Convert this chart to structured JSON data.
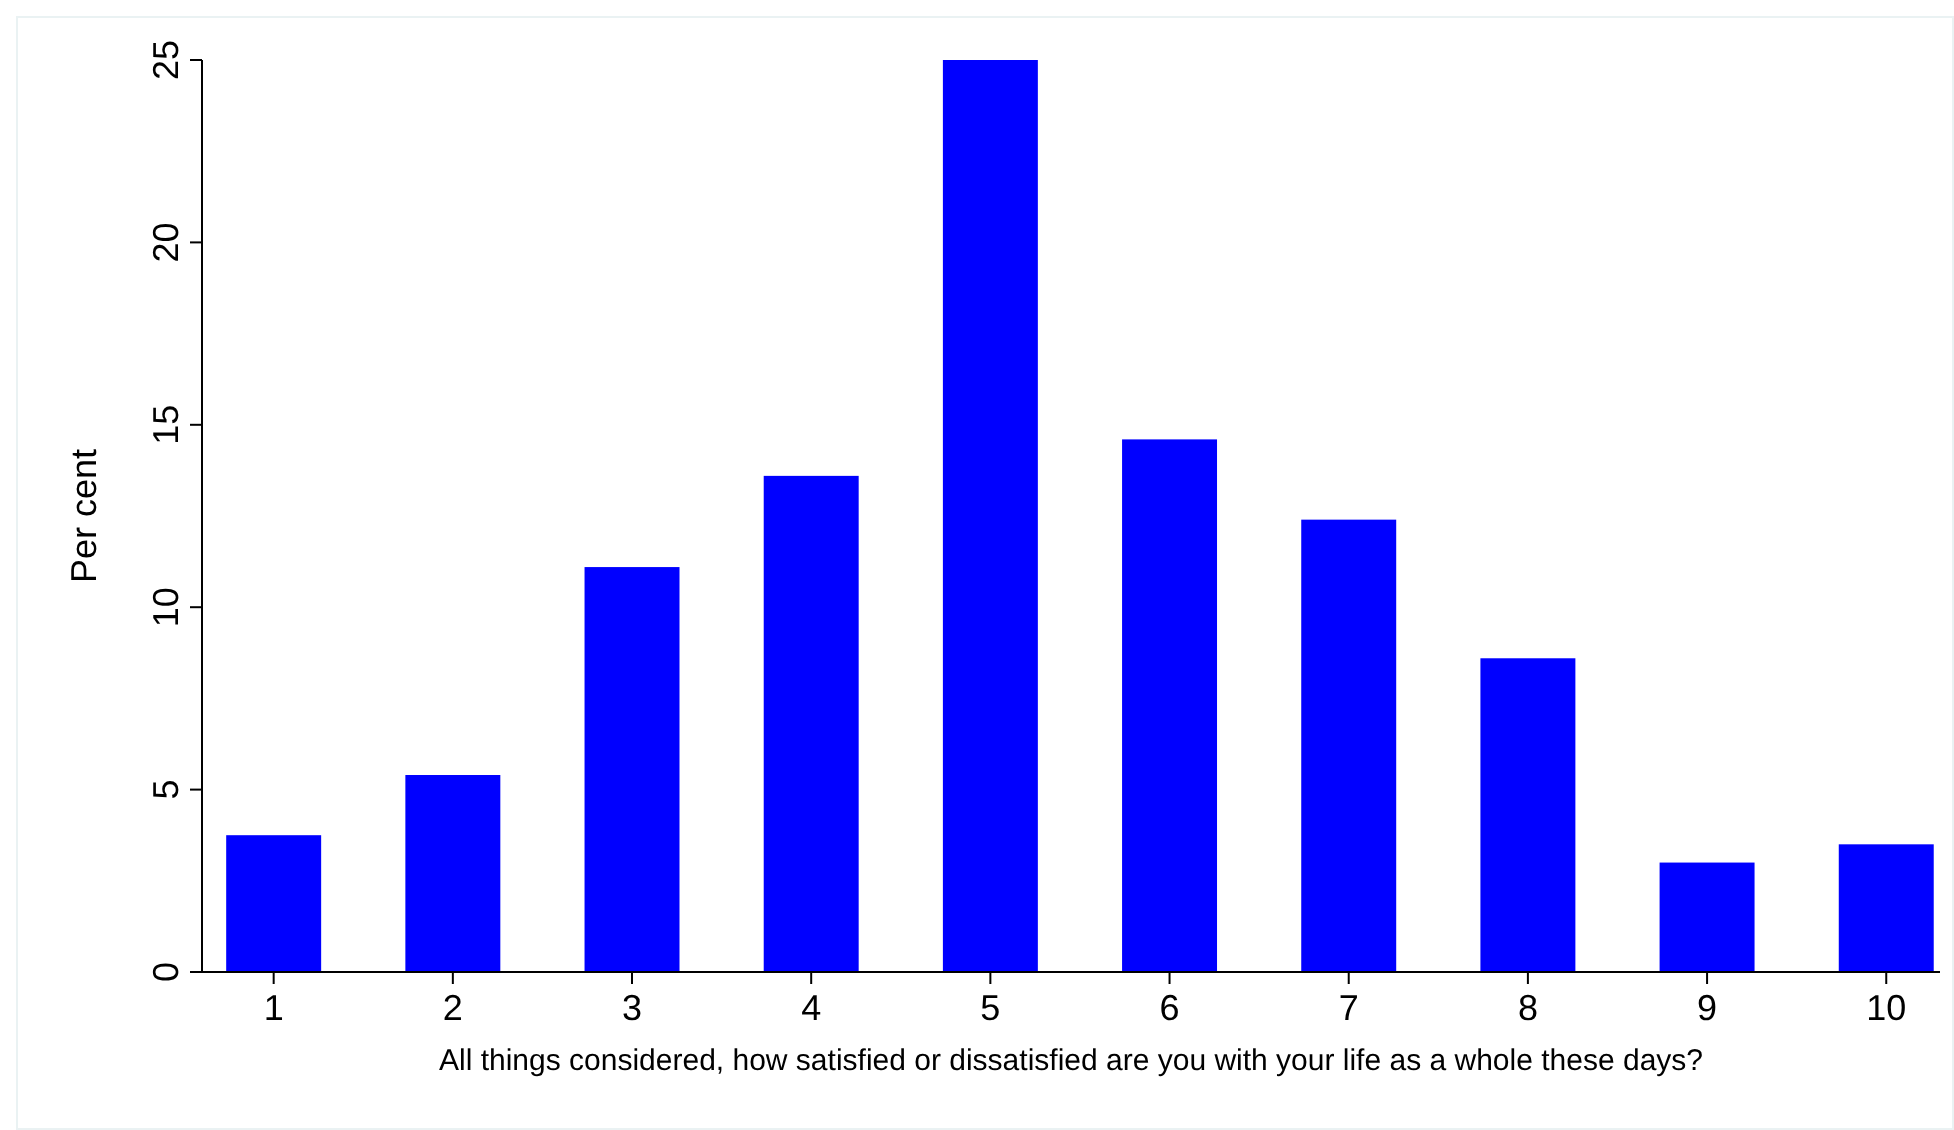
{
  "chart_data": {
    "type": "bar",
    "xlabel": "All things considered, how satisfied or dissatisfied are you with your life as a whole these days?",
    "ylabel": "Per cent",
    "x": [
      1,
      2,
      3,
      4,
      5,
      6,
      7,
      8,
      9,
      10
    ],
    "values": [
      3.75,
      5.4,
      11.1,
      13.6,
      25.0,
      14.6,
      12.4,
      8.6,
      3.0,
      3.5
    ],
    "color": "#0000ff",
    "xlim": [
      0.6,
      10.3
    ],
    "xticks": [
      1,
      2,
      3,
      4,
      5,
      6,
      7,
      8,
      9,
      10
    ],
    "ylim": [
      0,
      25
    ],
    "yticks": [
      0,
      5,
      10,
      15,
      20,
      25
    ],
    "grid": false
  }
}
